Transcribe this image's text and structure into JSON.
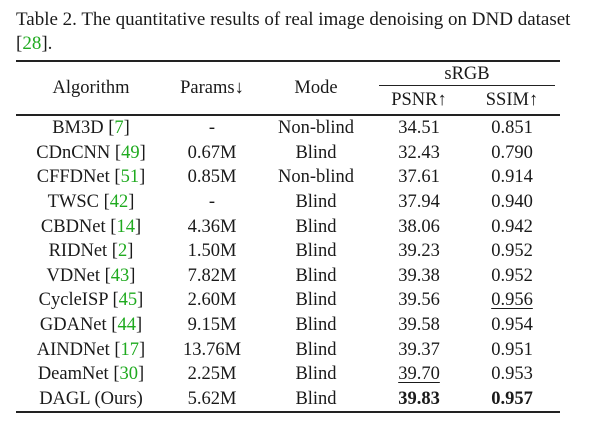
{
  "caption": {
    "text_before": "Table 2. The quantitative results of real image denoising on DND dataset [",
    "ref": "28",
    "text_after": "]."
  },
  "headers": {
    "algorithm": "Algorithm",
    "params": "Params↓",
    "mode": "Mode",
    "group": "sRGB",
    "psnr": "PSNR↑",
    "ssim": "SSIM↑"
  },
  "rows": [
    {
      "name": "BM3D",
      "ref": "7",
      "params": "-",
      "mode": "Non-blind",
      "psnr": "34.51",
      "ssim": "0.851"
    },
    {
      "name": "CDnCNN",
      "ref": "49",
      "params": "0.67M",
      "mode": "Blind",
      "psnr": "32.43",
      "ssim": "0.790"
    },
    {
      "name": "CFFDNet",
      "ref": "51",
      "params": "0.85M",
      "mode": "Non-blind",
      "psnr": "37.61",
      "ssim": "0.914"
    },
    {
      "name": "TWSC",
      "ref": "42",
      "params": "-",
      "mode": "Blind",
      "psnr": "37.94",
      "ssim": "0.940"
    },
    {
      "name": "CBDNet",
      "ref": "14",
      "params": "4.36M",
      "mode": "Blind",
      "psnr": "38.06",
      "ssim": "0.942"
    },
    {
      "name": "RIDNet",
      "ref": "2",
      "params": "1.50M",
      "mode": "Blind",
      "psnr": "39.23",
      "ssim": "0.952"
    },
    {
      "name": "VDNet",
      "ref": "43",
      "params": "7.82M",
      "mode": "Blind",
      "psnr": "39.38",
      "ssim": "0.952"
    },
    {
      "name": "CycleISP",
      "ref": "45",
      "params": "2.60M",
      "mode": "Blind",
      "psnr": "39.56",
      "ssim": "0.956"
    },
    {
      "name": "GDANet",
      "ref": "44",
      "params": "9.15M",
      "mode": "Blind",
      "psnr": "39.58",
      "ssim": "0.954"
    },
    {
      "name": "AINDNet",
      "ref": "17",
      "params": "13.76M",
      "mode": "Blind",
      "psnr": "39.37",
      "ssim": "0.951"
    },
    {
      "name": "DeamNet",
      "ref": "30",
      "params": "2.25M",
      "mode": "Blind",
      "psnr": "39.70",
      "ssim": "0.953"
    },
    {
      "name": "DAGL (Ours)",
      "ref": "",
      "params": "5.62M",
      "mode": "Blind",
      "psnr": "39.83",
      "ssim": "0.957"
    }
  ],
  "colors": {
    "citation": "#1faa1f",
    "text": "#1a1a1a"
  }
}
